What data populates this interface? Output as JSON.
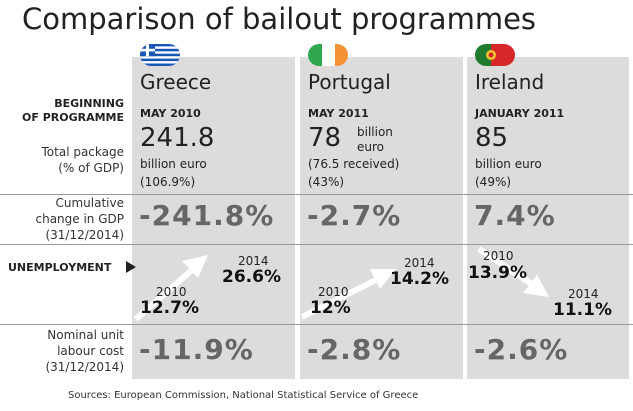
{
  "title": "Comparison of bailout programmes",
  "row_labels": {
    "beginning_1": "BEGINNING",
    "beginning_2": "OF PROGRAMME",
    "total_package_1": "Total package",
    "total_package_2": "(% of GDP)",
    "cumulative_1": "Cumulative",
    "cumulative_2": "change in GDP",
    "cumulative_3": "(31/12/2014)",
    "unemployment": "UNEMPLOYMENT",
    "labour_1": "Nominal unit",
    "labour_2": "labour cost",
    "labour_3": "(31/12/2014)"
  },
  "countries": [
    {
      "name": "Greece",
      "flag_icon": "greece-flag-icon",
      "begin": "MAY 2010",
      "package_value": "241.8",
      "package_unit": "billion euro",
      "package_note": "",
      "package_pct": "(106.9%)",
      "gdp_change": "-241.8%",
      "unemp_year_start": "2010",
      "unemp_start": "12.7%",
      "unemp_year_end": "2014",
      "unemp_end": "26.6%",
      "labour_cost": "-11.9%"
    },
    {
      "name": "Portugal",
      "flag_icon": "ireland-flag-icon",
      "begin": "MAY 2011",
      "package_value": "78",
      "package_unit_1": "billion",
      "package_unit_2": "euro",
      "package_note": "(76.5 received)",
      "package_pct": "(43%)",
      "gdp_change": "-2.7%",
      "unemp_year_start": "2010",
      "unemp_start": "12%",
      "unemp_year_end": "2014",
      "unemp_end": "14.2%",
      "labour_cost": "-2.8%"
    },
    {
      "name": "Ireland",
      "flag_icon": "portugal-flag-icon",
      "begin": "JANUARY 2011",
      "package_value": "85",
      "package_unit": "billion euro",
      "package_note": "",
      "package_pct": "(49%)",
      "gdp_change": "7.4%",
      "unemp_year_start": "2010",
      "unemp_start": "13.9%",
      "unemp_year_end": "2014",
      "unemp_end": "11.1%",
      "labour_cost": "-2.6%"
    }
  ],
  "source": "Sources: European Commission, National Statistical Service of Greece"
}
